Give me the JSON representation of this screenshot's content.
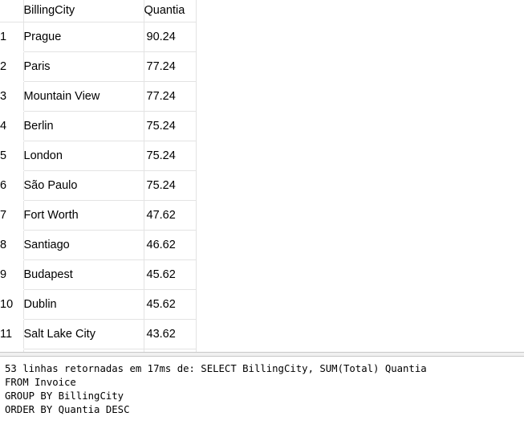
{
  "results": {
    "columns": [
      "BillingCity",
      "Quantia"
    ],
    "rows": [
      {
        "num": "1",
        "city": "Prague",
        "quantia": "90.24"
      },
      {
        "num": "2",
        "city": "Paris",
        "quantia": "77.24"
      },
      {
        "num": "3",
        "city": "Mountain View",
        "quantia": "77.24"
      },
      {
        "num": "4",
        "city": "Berlin",
        "quantia": "75.24"
      },
      {
        "num": "5",
        "city": "London",
        "quantia": "75.24"
      },
      {
        "num": "6",
        "city": "São Paulo",
        "quantia": "75.24"
      },
      {
        "num": "7",
        "city": "Fort Worth",
        "quantia": "47.62"
      },
      {
        "num": "8",
        "city": "Santiago",
        "quantia": "46.62"
      },
      {
        "num": "9",
        "city": "Budapest",
        "quantia": "45.62"
      },
      {
        "num": "10",
        "city": "Dublin",
        "quantia": "45.62"
      },
      {
        "num": "11",
        "city": "Salt Lake City",
        "quantia": "43.62"
      }
    ]
  },
  "message": {
    "text": "53 linhas retornadas em 17ms de: SELECT BillingCity, SUM(Total) Quantia\nFROM Invoice\nGROUP BY BillingCity\nORDER BY Quantia DESC"
  }
}
